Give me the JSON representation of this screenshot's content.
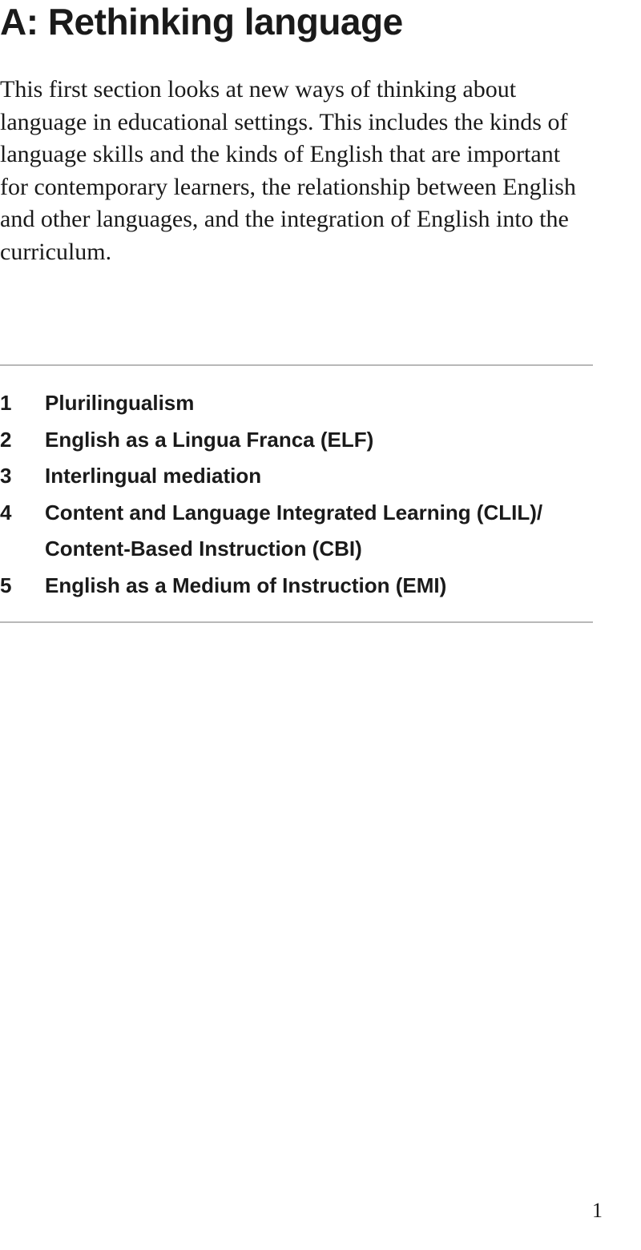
{
  "title": "A: Rethinking language",
  "intro": "This first section looks at new ways of thinking about language in educational settings. This includes the kinds of language skills and the kinds of English that are important for contemporary learners, the relationship between English and other languages, and the integration of English into the curriculum.",
  "toc": [
    {
      "num": "1",
      "label": "Plurilingualism"
    },
    {
      "num": "2",
      "label": "English as a Lingua Franca (ELF)"
    },
    {
      "num": "3",
      "label": "Interlingual mediation"
    },
    {
      "num": "4",
      "label": "Content and Language Integrated Learning (CLIL)/ Content-Based Instruction (CBI)"
    },
    {
      "num": "5",
      "label": "English as a Medium of Instruction (EMI)"
    }
  ],
  "page_number": "1"
}
